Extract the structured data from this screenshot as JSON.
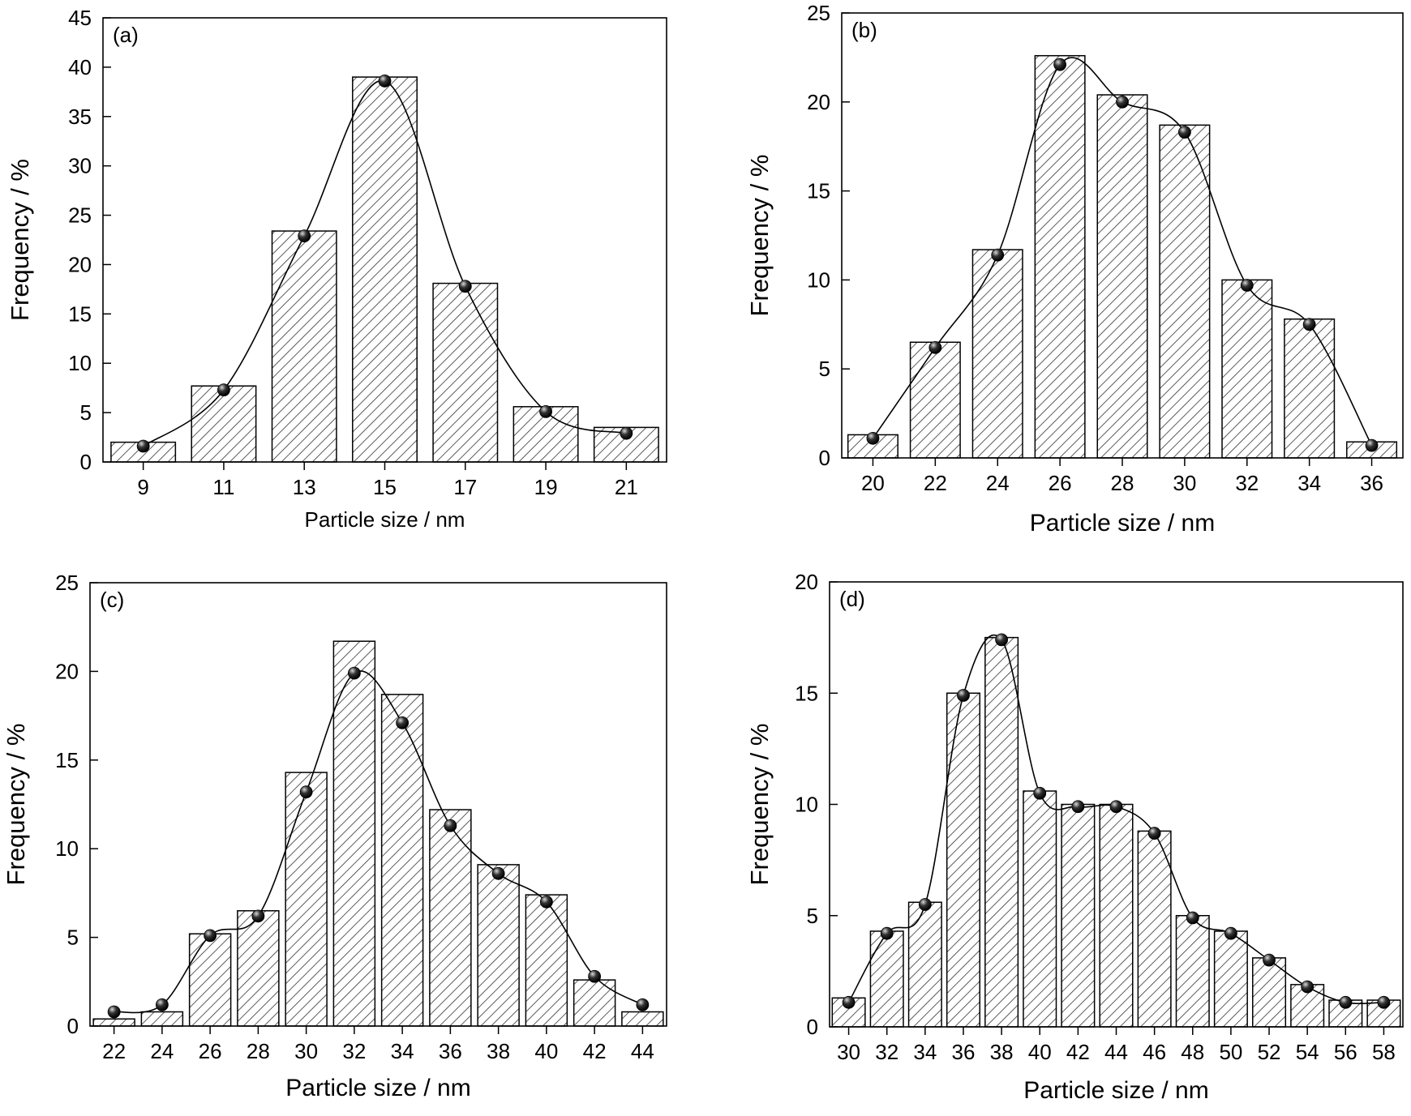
{
  "chart_data": [
    {
      "panel_label": "(a)",
      "type": "bar",
      "xlabel": "Particle size / nm",
      "ylabel": "Frequency / %",
      "categories": [
        "9",
        "11",
        "13",
        "15",
        "17",
        "19",
        "21"
      ],
      "x": [
        9,
        11,
        13,
        15,
        17,
        19,
        21
      ],
      "bar_values": [
        2.0,
        7.7,
        23.4,
        39.0,
        18.1,
        5.6,
        3.5
      ],
      "point_values": [
        1.6,
        7.3,
        22.9,
        38.6,
        17.8,
        5.1,
        2.9
      ],
      "ylim": [
        0,
        45
      ],
      "yticks": [
        0,
        5,
        10,
        15,
        20,
        25,
        30,
        35,
        40,
        45
      ],
      "grid": false,
      "legend": false
    },
    {
      "panel_label": "(b)",
      "type": "bar",
      "xlabel": "Particle size / nm",
      "ylabel": "Frequency / %",
      "categories": [
        "20",
        "22",
        "24",
        "26",
        "28",
        "30",
        "32",
        "34",
        "36"
      ],
      "x": [
        20,
        22,
        24,
        26,
        28,
        30,
        32,
        34,
        36
      ],
      "bar_values": [
        1.3,
        6.5,
        11.7,
        22.6,
        20.4,
        18.7,
        10.0,
        7.8,
        0.9
      ],
      "point_values": [
        1.1,
        6.2,
        11.4,
        22.1,
        20.0,
        18.3,
        9.7,
        7.5,
        0.7
      ],
      "ylim": [
        0,
        25
      ],
      "yticks": [
        0,
        5,
        10,
        15,
        20,
        25
      ],
      "grid": false,
      "legend": false
    },
    {
      "panel_label": "(c)",
      "type": "bar",
      "xlabel": "Particle size / nm",
      "ylabel": "Frequency / %",
      "categories": [
        "22",
        "24",
        "26",
        "28",
        "30",
        "32",
        "34",
        "36",
        "38",
        "40",
        "42",
        "44"
      ],
      "x": [
        22,
        24,
        26,
        28,
        30,
        32,
        34,
        36,
        38,
        40,
        42,
        44
      ],
      "bar_values": [
        0.4,
        0.8,
        5.2,
        6.5,
        14.3,
        21.7,
        18.7,
        12.2,
        9.1,
        7.4,
        2.6,
        0.8
      ],
      "point_values": [
        0.8,
        1.2,
        5.1,
        6.2,
        13.2,
        19.9,
        17.1,
        11.3,
        8.6,
        7.0,
        2.8,
        1.2
      ],
      "ylim": [
        0,
        25
      ],
      "yticks": [
        0,
        5,
        10,
        15,
        20,
        25
      ],
      "grid": false,
      "legend": false
    },
    {
      "panel_label": "(d)",
      "type": "bar",
      "xlabel": "Particle size / nm",
      "ylabel": "Frequency / %",
      "categories": [
        "30",
        "32",
        "34",
        "36",
        "38",
        "40",
        "42",
        "44",
        "46",
        "48",
        "50",
        "52",
        "54",
        "56",
        "58"
      ],
      "x": [
        30,
        32,
        34,
        36,
        38,
        40,
        42,
        44,
        46,
        48,
        50,
        52,
        54,
        56,
        58
      ],
      "bar_values": [
        1.3,
        4.3,
        5.6,
        15.0,
        17.5,
        10.6,
        10.0,
        10.0,
        8.8,
        5.0,
        4.3,
        3.1,
        1.9,
        1.2,
        1.2
      ],
      "point_values": [
        1.1,
        4.2,
        5.5,
        14.9,
        17.4,
        10.5,
        9.9,
        9.9,
        8.7,
        4.9,
        4.2,
        3.0,
        1.8,
        1.1,
        1.1
      ],
      "ylim": [
        0,
        20
      ],
      "yticks": [
        0,
        5,
        10,
        15,
        20
      ],
      "grid": false,
      "legend": false
    }
  ]
}
